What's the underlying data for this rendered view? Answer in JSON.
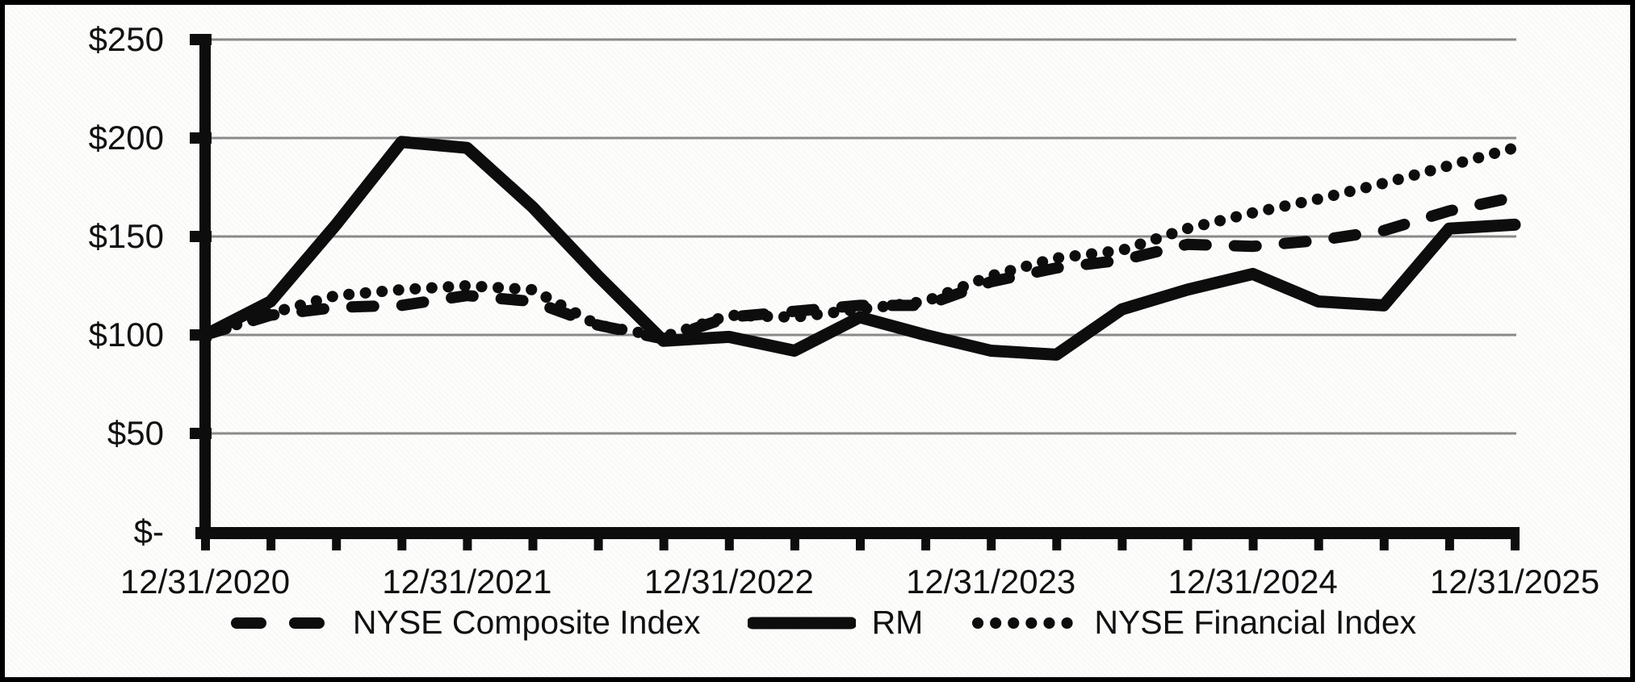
{
  "chart_data": {
    "type": "line",
    "title": "",
    "x_axis": {
      "visible_labels": [
        "12/31/2020",
        "12/31/2021",
        "12/31/2022",
        "12/31/2023",
        "12/31/2024",
        "12/31/2025"
      ],
      "label_every_n_points": 4,
      "minor_ticks": "quarterly"
    },
    "y_axis": {
      "tick_labels": [
        "$-",
        "$50",
        "$100",
        "$150",
        "$200",
        "$250"
      ],
      "min": 0,
      "max": 250,
      "step": 50,
      "ylabel": ""
    },
    "grid": true,
    "legend_position": "bottom",
    "colors": {
      "line": "#0d0d0d",
      "grid": "#8a8a8a",
      "text": "#111111",
      "background": "#fdfdfc",
      "frame": "#000000"
    },
    "series": [
      {
        "name": "NYSE Composite Index",
        "style": "dashed",
        "values": [
          100,
          110,
          114,
          115,
          120,
          117,
          105,
          98,
          109,
          112,
          115,
          115,
          127,
          134,
          138,
          146,
          145,
          148,
          153,
          163,
          170
        ]
      },
      {
        "name": "RM",
        "style": "solid",
        "values": [
          100,
          117,
          156,
          198,
          195,
          165,
          130,
          97,
          99,
          92,
          109,
          100,
          92,
          90,
          113,
          123,
          131,
          117,
          115,
          154,
          156
        ]
      },
      {
        "name": "NYSE Financial Index",
        "style": "dotted",
        "values": [
          100,
          111,
          120,
          123,
          125,
          123,
          105,
          99,
          110,
          109,
          113,
          117,
          130,
          139,
          143,
          154,
          162,
          169,
          177,
          186,
          195
        ]
      }
    ]
  }
}
